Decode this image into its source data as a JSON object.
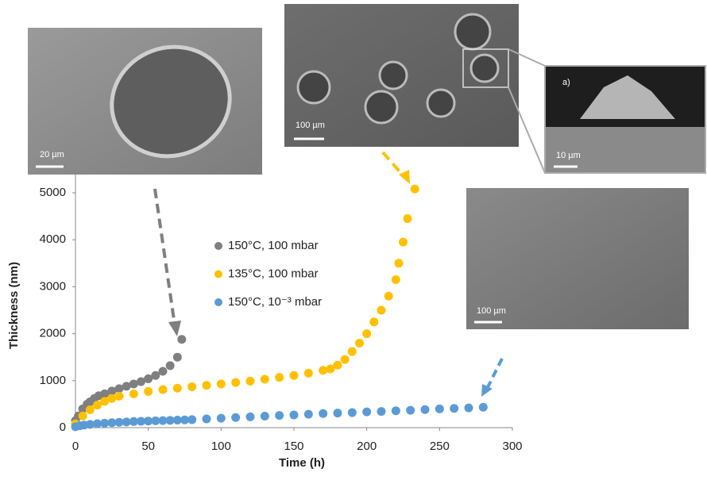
{
  "chart_data": {
    "type": "scatter",
    "xlabel": "Time (h)",
    "ylabel": "Thickness (nm)",
    "xlim": [
      0,
      300
    ],
    "xticks": [
      0,
      50,
      100,
      150,
      200,
      250,
      300
    ],
    "ylim": [
      0,
      5000
    ],
    "yticks": [
      0,
      1000,
      2000,
      3000,
      4000,
      5000
    ],
    "image_labels": [
      "20 µm",
      "100 µm",
      "a)",
      "10 µm",
      "100 µm"
    ],
    "series": [
      {
        "name": "150°C, 100 mbar",
        "color": "#7f7f7f",
        "x": [
          0,
          2,
          5,
          8,
          10,
          13,
          16,
          20,
          25,
          30,
          35,
          40,
          45,
          50,
          55,
          60,
          65,
          70,
          73
        ],
        "values": [
          150,
          250,
          400,
          500,
          550,
          620,
          680,
          720,
          780,
          830,
          880,
          930,
          980,
          1040,
          1110,
          1200,
          1320,
          1500,
          1880
        ]
      },
      {
        "name": "135°C, 100 mbar",
        "color": "#ffc000",
        "x": [
          0,
          5,
          10,
          15,
          20,
          25,
          30,
          40,
          50,
          60,
          70,
          80,
          90,
          100,
          110,
          120,
          130,
          140,
          150,
          160,
          170,
          175,
          180,
          185,
          190,
          195,
          200,
          205,
          210,
          215,
          220,
          222,
          225,
          228,
          233
        ],
        "values": [
          80,
          250,
          380,
          480,
          560,
          620,
          670,
          720,
          770,
          810,
          840,
          870,
          900,
          930,
          960,
          990,
          1030,
          1070,
          1110,
          1160,
          1220,
          1250,
          1330,
          1450,
          1620,
          1800,
          2000,
          2250,
          2500,
          2800,
          3150,
          3500,
          3950,
          4450,
          5080
        ]
      },
      {
        "name": "150°C, 10⁻³ mbar",
        "color": "#5b9bd5",
        "x": [
          0,
          3,
          6,
          10,
          15,
          20,
          25,
          30,
          35,
          40,
          45,
          50,
          55,
          60,
          65,
          70,
          75,
          80,
          90,
          100,
          110,
          120,
          130,
          140,
          150,
          160,
          170,
          180,
          190,
          200,
          210,
          220,
          230,
          240,
          250,
          260,
          270,
          280
        ],
        "values": [
          20,
          40,
          55,
          70,
          85,
          95,
          105,
          115,
          120,
          130,
          135,
          140,
          145,
          150,
          155,
          160,
          165,
          170,
          185,
          200,
          215,
          230,
          245,
          260,
          270,
          285,
          300,
          310,
          320,
          335,
          345,
          360,
          370,
          385,
          400,
          410,
          420,
          435
        ]
      }
    ]
  }
}
